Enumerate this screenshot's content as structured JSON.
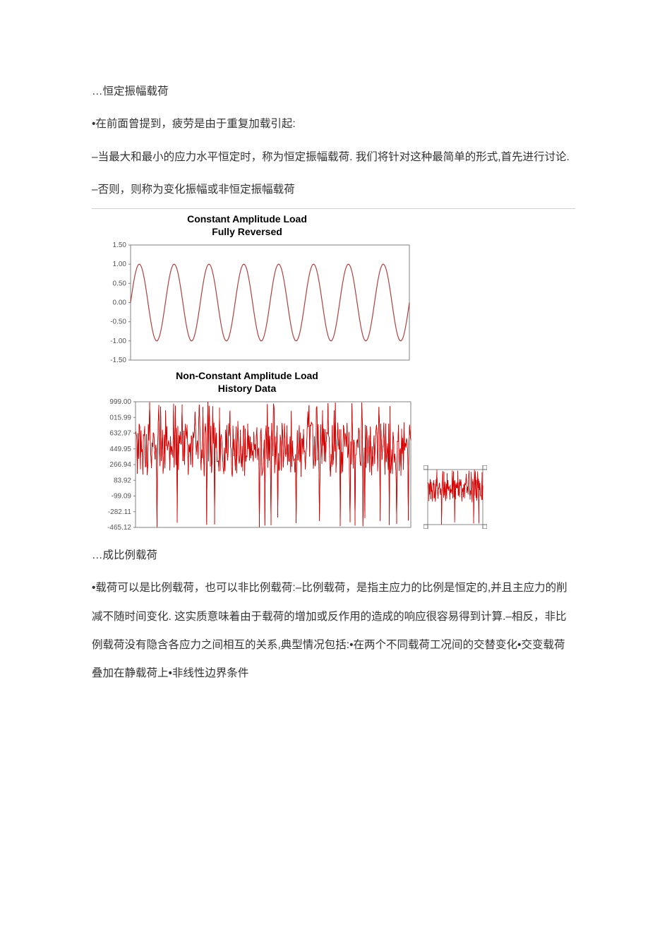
{
  "text": {
    "p1": "…恒定振幅载荷",
    "p2": "•在前面曾提到，疲劳是由于重复加载引起:",
    "p3": "–当最大和最小的应力水平恒定时，称为恒定振幅载荷. 我们将针对这种最简单的形式,首先进行讨论.",
    "p4": "–否则，则称为变化振幅或非恒定振幅载荷",
    "p5": "…成比例载荷",
    "p6": "•载荷可以是比例载荷，也可以非比例载荷:–比例载荷，是指主应力的比例是恒定的,并且主应力的削减不随时间变化. 这实质意味着由于载荷的增加或反作用的造成的响应很容易得到计算.–相反，非比例载荷没有隐含各应力之间相互的关系,典型情况包括:•在两个不同载荷工况间的交替变化•交变载荷叠加在静载荷上•非线性边界条件"
  },
  "chart1": {
    "type": "line",
    "title_line1": "Constant Amplitude Load",
    "title_line2": "Fully Reversed",
    "yticks": [
      "1.50",
      "1.00",
      "0.50",
      "0.00",
      "-0.50",
      "-1.00",
      "-1.50"
    ],
    "ylim": [
      -1.5,
      1.5
    ],
    "line_color": "#b04040",
    "line_width": 1.2,
    "axis_color": "#808080",
    "tick_font_size": 10,
    "tick_color": "#555555",
    "background": "#ffffff",
    "amplitude": 1.0,
    "cycles": 8
  },
  "chart2": {
    "type": "line",
    "title_line1": "Non-Constant Amplitude Load",
    "title_line2": "History Data",
    "yticks": [
      "999.00",
      "015.99",
      "632.97",
      "449.95",
      "266.94",
      "83.92",
      "-99.09",
      "-282.11",
      "-465.12"
    ],
    "ylim": [
      -465.12,
      999.0
    ],
    "line_color": "#d40000",
    "line_width": 0.7,
    "axis_color": "#808080",
    "tick_font_size": 10,
    "tick_color": "#555555",
    "background": "#ffffff",
    "mean": 450,
    "noise_min": -465,
    "noise_max": 999,
    "samples": 450
  },
  "chart2_thumb": {
    "border_color": "#888888",
    "handle_color": "#ffffff",
    "line_color": "#d40000"
  }
}
